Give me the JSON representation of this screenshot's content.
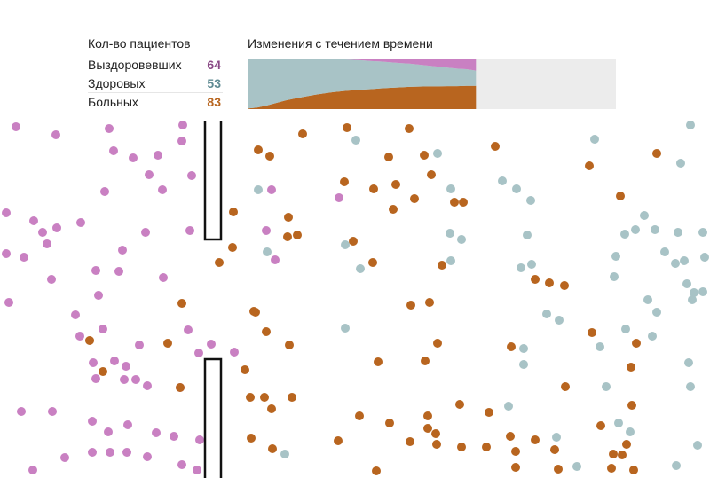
{
  "colors": {
    "recovered": "#c980c2",
    "healthy": "#a8c3c6",
    "sick": "#b8651f",
    "chart_empty": "#ececec",
    "wall": "#111111"
  },
  "stats": {
    "title": "Кол-во пациентов",
    "recovered": {
      "label": "Выздоровевших",
      "value": "64",
      "color": "#8a4a86"
    },
    "healthy": {
      "label": "Здоровых",
      "value": "53",
      "color": "#5f8b93"
    },
    "sick": {
      "label": "Больных",
      "value": "83",
      "color": "#b8651f"
    }
  },
  "over_time": {
    "title": "Изменения с течением времени"
  },
  "chart_data": {
    "type": "area",
    "stacked": true,
    "total": 200,
    "progress": 0.62,
    "series": [
      {
        "key": "sick",
        "values": [
          2,
          6,
          14,
          24,
          34,
          42,
          49,
          56,
          62,
          67,
          71,
          74,
          77,
          79,
          82,
          84,
          86,
          88,
          89,
          90,
          90,
          91,
          91,
          92,
          92
        ]
      },
      {
        "key": "healthy",
        "values": [
          198,
          194,
          186,
          176,
          166,
          158,
          151,
          144,
          137,
          131,
          126,
          121,
          116,
          111,
          106,
          101,
          96,
          92,
          87,
          82,
          78,
          73,
          69,
          66,
          60
        ]
      },
      {
        "key": "recovered",
        "values": [
          0,
          0,
          0,
          0,
          0,
          0,
          0,
          0,
          1,
          2,
          3,
          5,
          7,
          10,
          12,
          15,
          18,
          20,
          24,
          28,
          32,
          36,
          40,
          42,
          48
        ]
      }
    ]
  }
}
